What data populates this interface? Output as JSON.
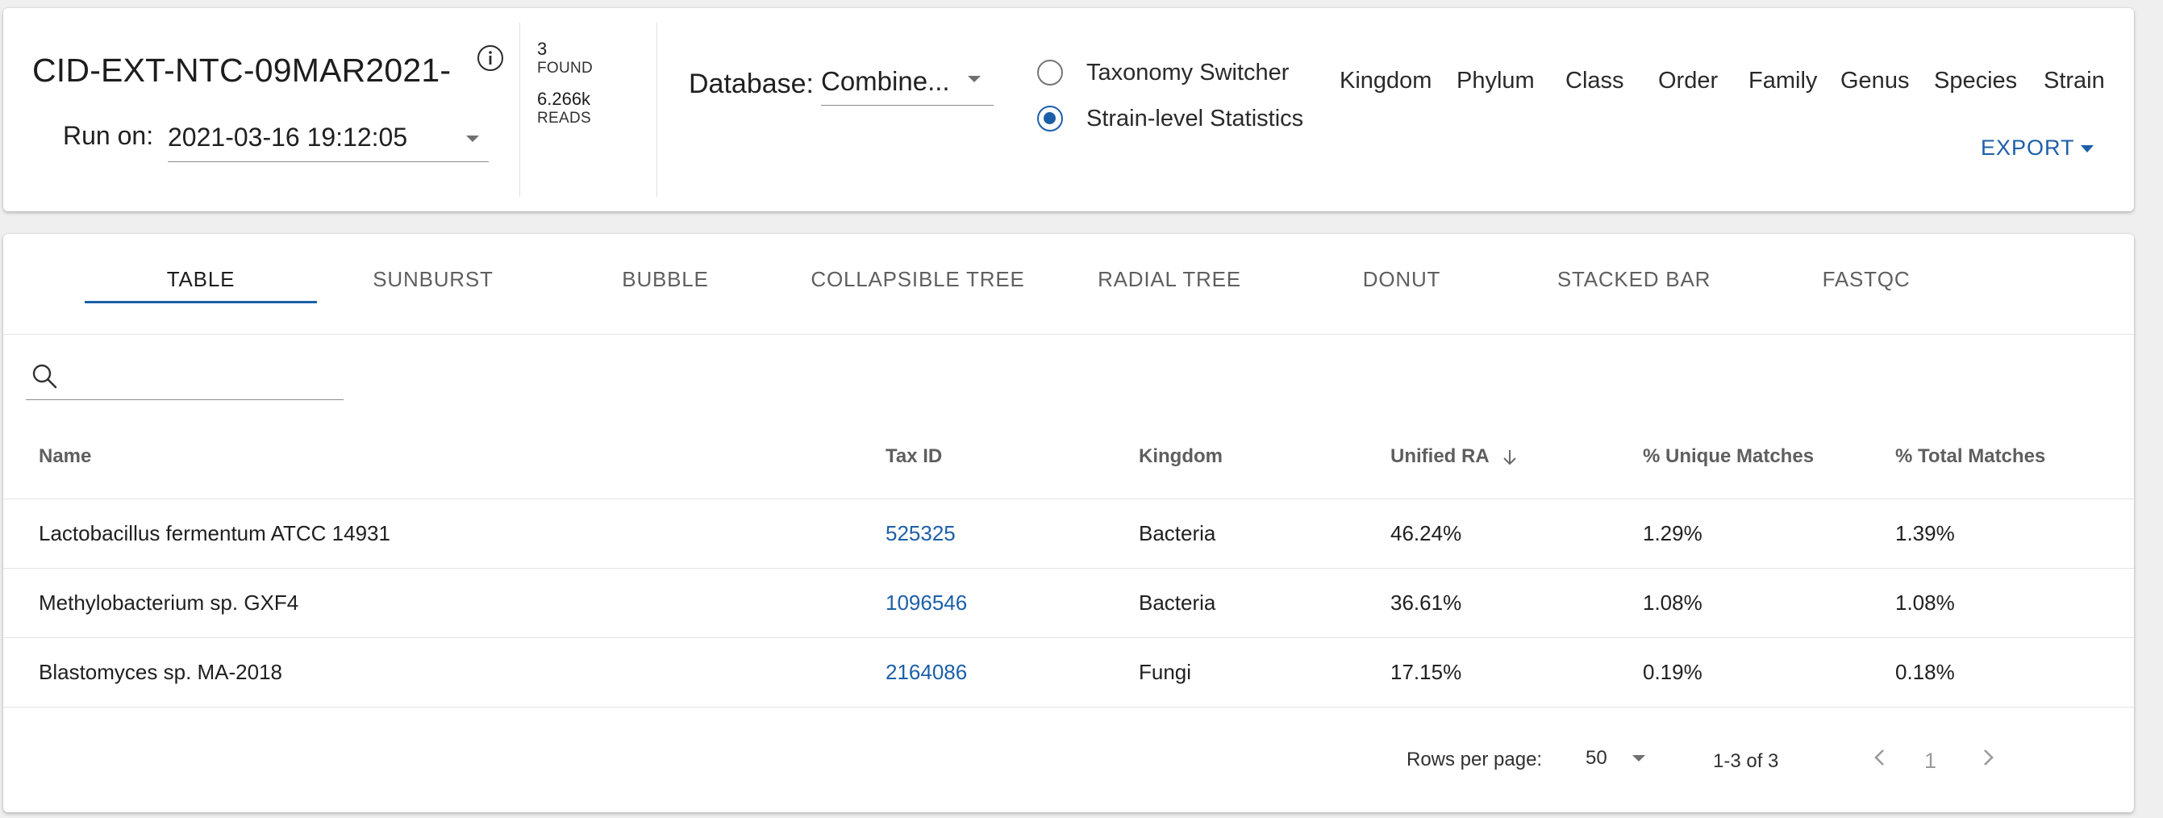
{
  "header": {
    "run_title": "CID-EXT-NTC-09MAR2021-",
    "run_on_label": "Run on:",
    "run_on_value": "2021-03-16 19:12:05",
    "found_count": "3",
    "found_label": "FOUND",
    "reads_count": "6.266k",
    "reads_label": "READS",
    "database_label": "Database:",
    "database_value": "Combine...",
    "taxonomy_switcher_label": "Taxonomy Switcher",
    "strain_stats_label": "Strain-level Statistics",
    "selected_mode": "Strain-level Statistics",
    "ranks": [
      "Kingdom",
      "Phylum",
      "Class",
      "Order",
      "Family",
      "Genus",
      "Species",
      "Strain"
    ],
    "export_label": "EXPORT"
  },
  "tabs": [
    {
      "label": "TABLE",
      "active": true
    },
    {
      "label": "SUNBURST"
    },
    {
      "label": "BUBBLE"
    },
    {
      "label": "COLLAPSIBLE TREE"
    },
    {
      "label": "RADIAL TREE"
    },
    {
      "label": "DONUT"
    },
    {
      "label": "STACKED BAR"
    },
    {
      "label": "FASTQC"
    }
  ],
  "search": {
    "placeholder": "",
    "value": ""
  },
  "table": {
    "columns": [
      "Name",
      "Tax ID",
      "Kingdom",
      "Unified RA",
      "% Unique Matches",
      "% Total Matches"
    ],
    "sort_column": "Unified RA",
    "sort_direction": "descending",
    "rows": [
      [
        "Lactobacillus fermentum ATCC 14931",
        "525325",
        "Bacteria",
        "46.24%",
        "1.29%",
        "1.39%"
      ],
      [
        "Methylobacterium sp. GXF4",
        "1096546",
        "Bacteria",
        "36.61%",
        "1.08%",
        "1.08%"
      ],
      [
        "Blastomyces sp. MA-2018",
        "2164086",
        "Fungi",
        "17.15%",
        "0.19%",
        "0.18%"
      ]
    ]
  },
  "pagination": {
    "rows_per_page_label": "Rows per page:",
    "rows_per_page_value": "50",
    "range_text": "1-3 of 3",
    "current_page": "1"
  },
  "colors": {
    "accent": "#1c5fa8",
    "background": "#efefef",
    "card": "#ffffff"
  },
  "icons": [
    "info-icon",
    "search-icon",
    "sort-arrow-down-icon",
    "chevron-left-icon",
    "chevron-right-icon",
    "caret-down-icon"
  ]
}
